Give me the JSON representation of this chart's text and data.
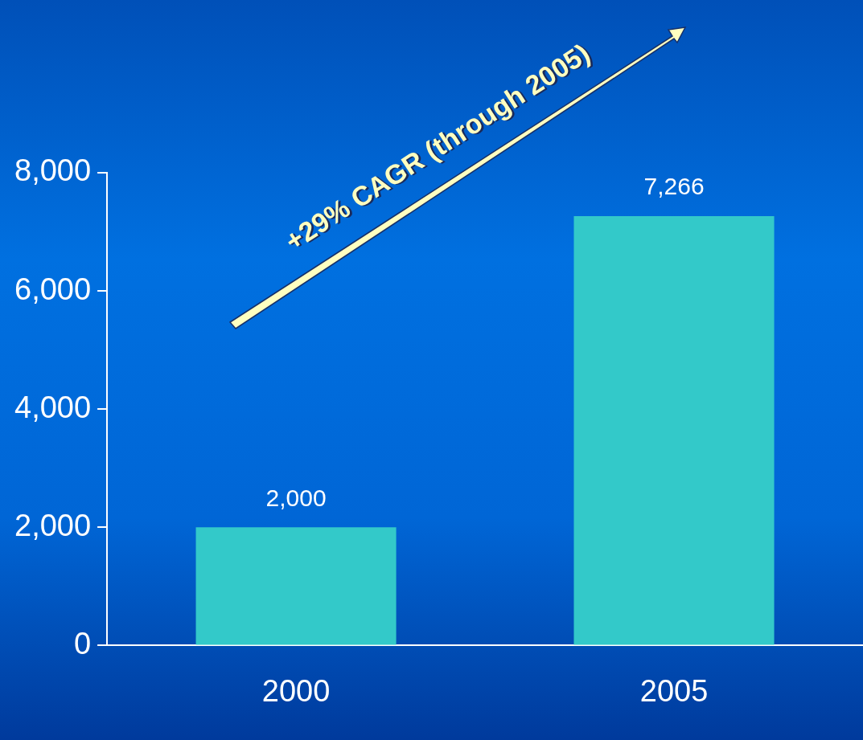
{
  "chart_data": {
    "type": "bar",
    "categories": [
      "2000",
      "2005"
    ],
    "values": [
      2000,
      7266
    ],
    "color": "#33c9c9",
    "ylim": [
      0,
      8000
    ],
    "yticks": [
      {
        "value": 0,
        "label": "0"
      },
      {
        "value": 2000,
        "label": "2,000"
      },
      {
        "value": 4000,
        "label": "4,000"
      },
      {
        "value": 6000,
        "label": "6,000"
      },
      {
        "value": 8000,
        "label": "8,000"
      }
    ],
    "grid": false,
    "legend": false,
    "value_labels": [
      "2,000",
      "7,266"
    ],
    "annotations": [
      "+29% CAGR (through 2005)"
    ]
  }
}
